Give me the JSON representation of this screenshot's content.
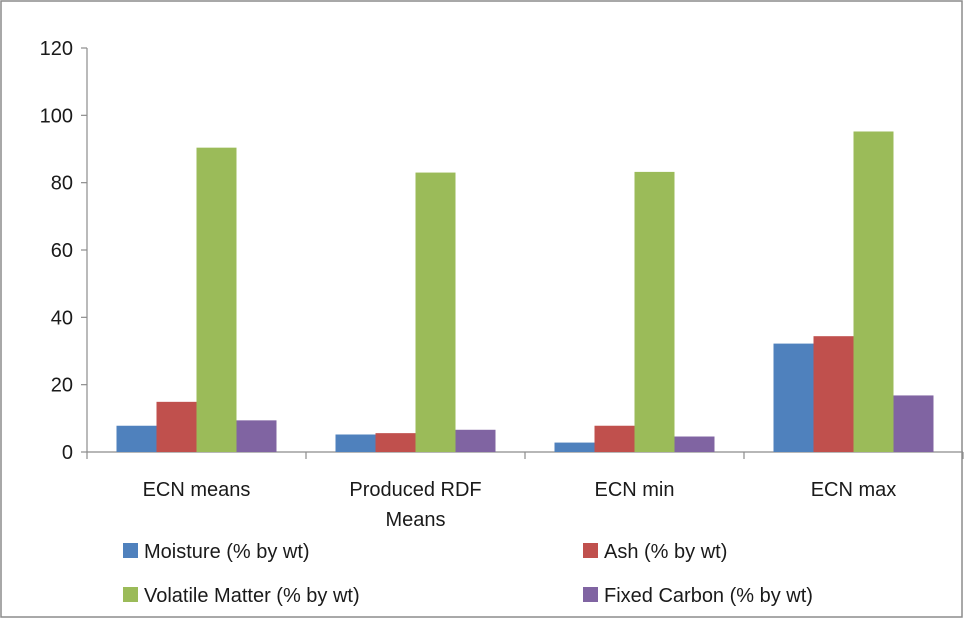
{
  "chart_data": {
    "type": "bar",
    "title": "",
    "xlabel": "",
    "ylabel": "",
    "ylim": [
      0,
      120
    ],
    "yticks": [
      0,
      20,
      40,
      60,
      80,
      100,
      120
    ],
    "grid": false,
    "legend_position": "bottom",
    "categories": [
      [
        "ECN means"
      ],
      [
        "Produced RDF",
        "Means"
      ],
      [
        "ECN min"
      ],
      [
        "ECN max"
      ]
    ],
    "series": [
      {
        "name": "Moisture (% by wt)",
        "color": "#4f81bd",
        "values": [
          7.8,
          5.2,
          2.8,
          32.2
        ]
      },
      {
        "name": "Ash (% by wt)",
        "color": "#c0504d",
        "values": [
          14.9,
          5.6,
          7.8,
          34.4
        ]
      },
      {
        "name": "Volatile Matter (% by wt)",
        "color": "#9bbb59",
        "values": [
          90.4,
          83.0,
          83.2,
          95.2
        ]
      },
      {
        "name": "Fixed Carbon (% by wt)",
        "color": "#8064a2",
        "values": [
          9.4,
          6.6,
          4.6,
          16.8
        ]
      }
    ]
  }
}
